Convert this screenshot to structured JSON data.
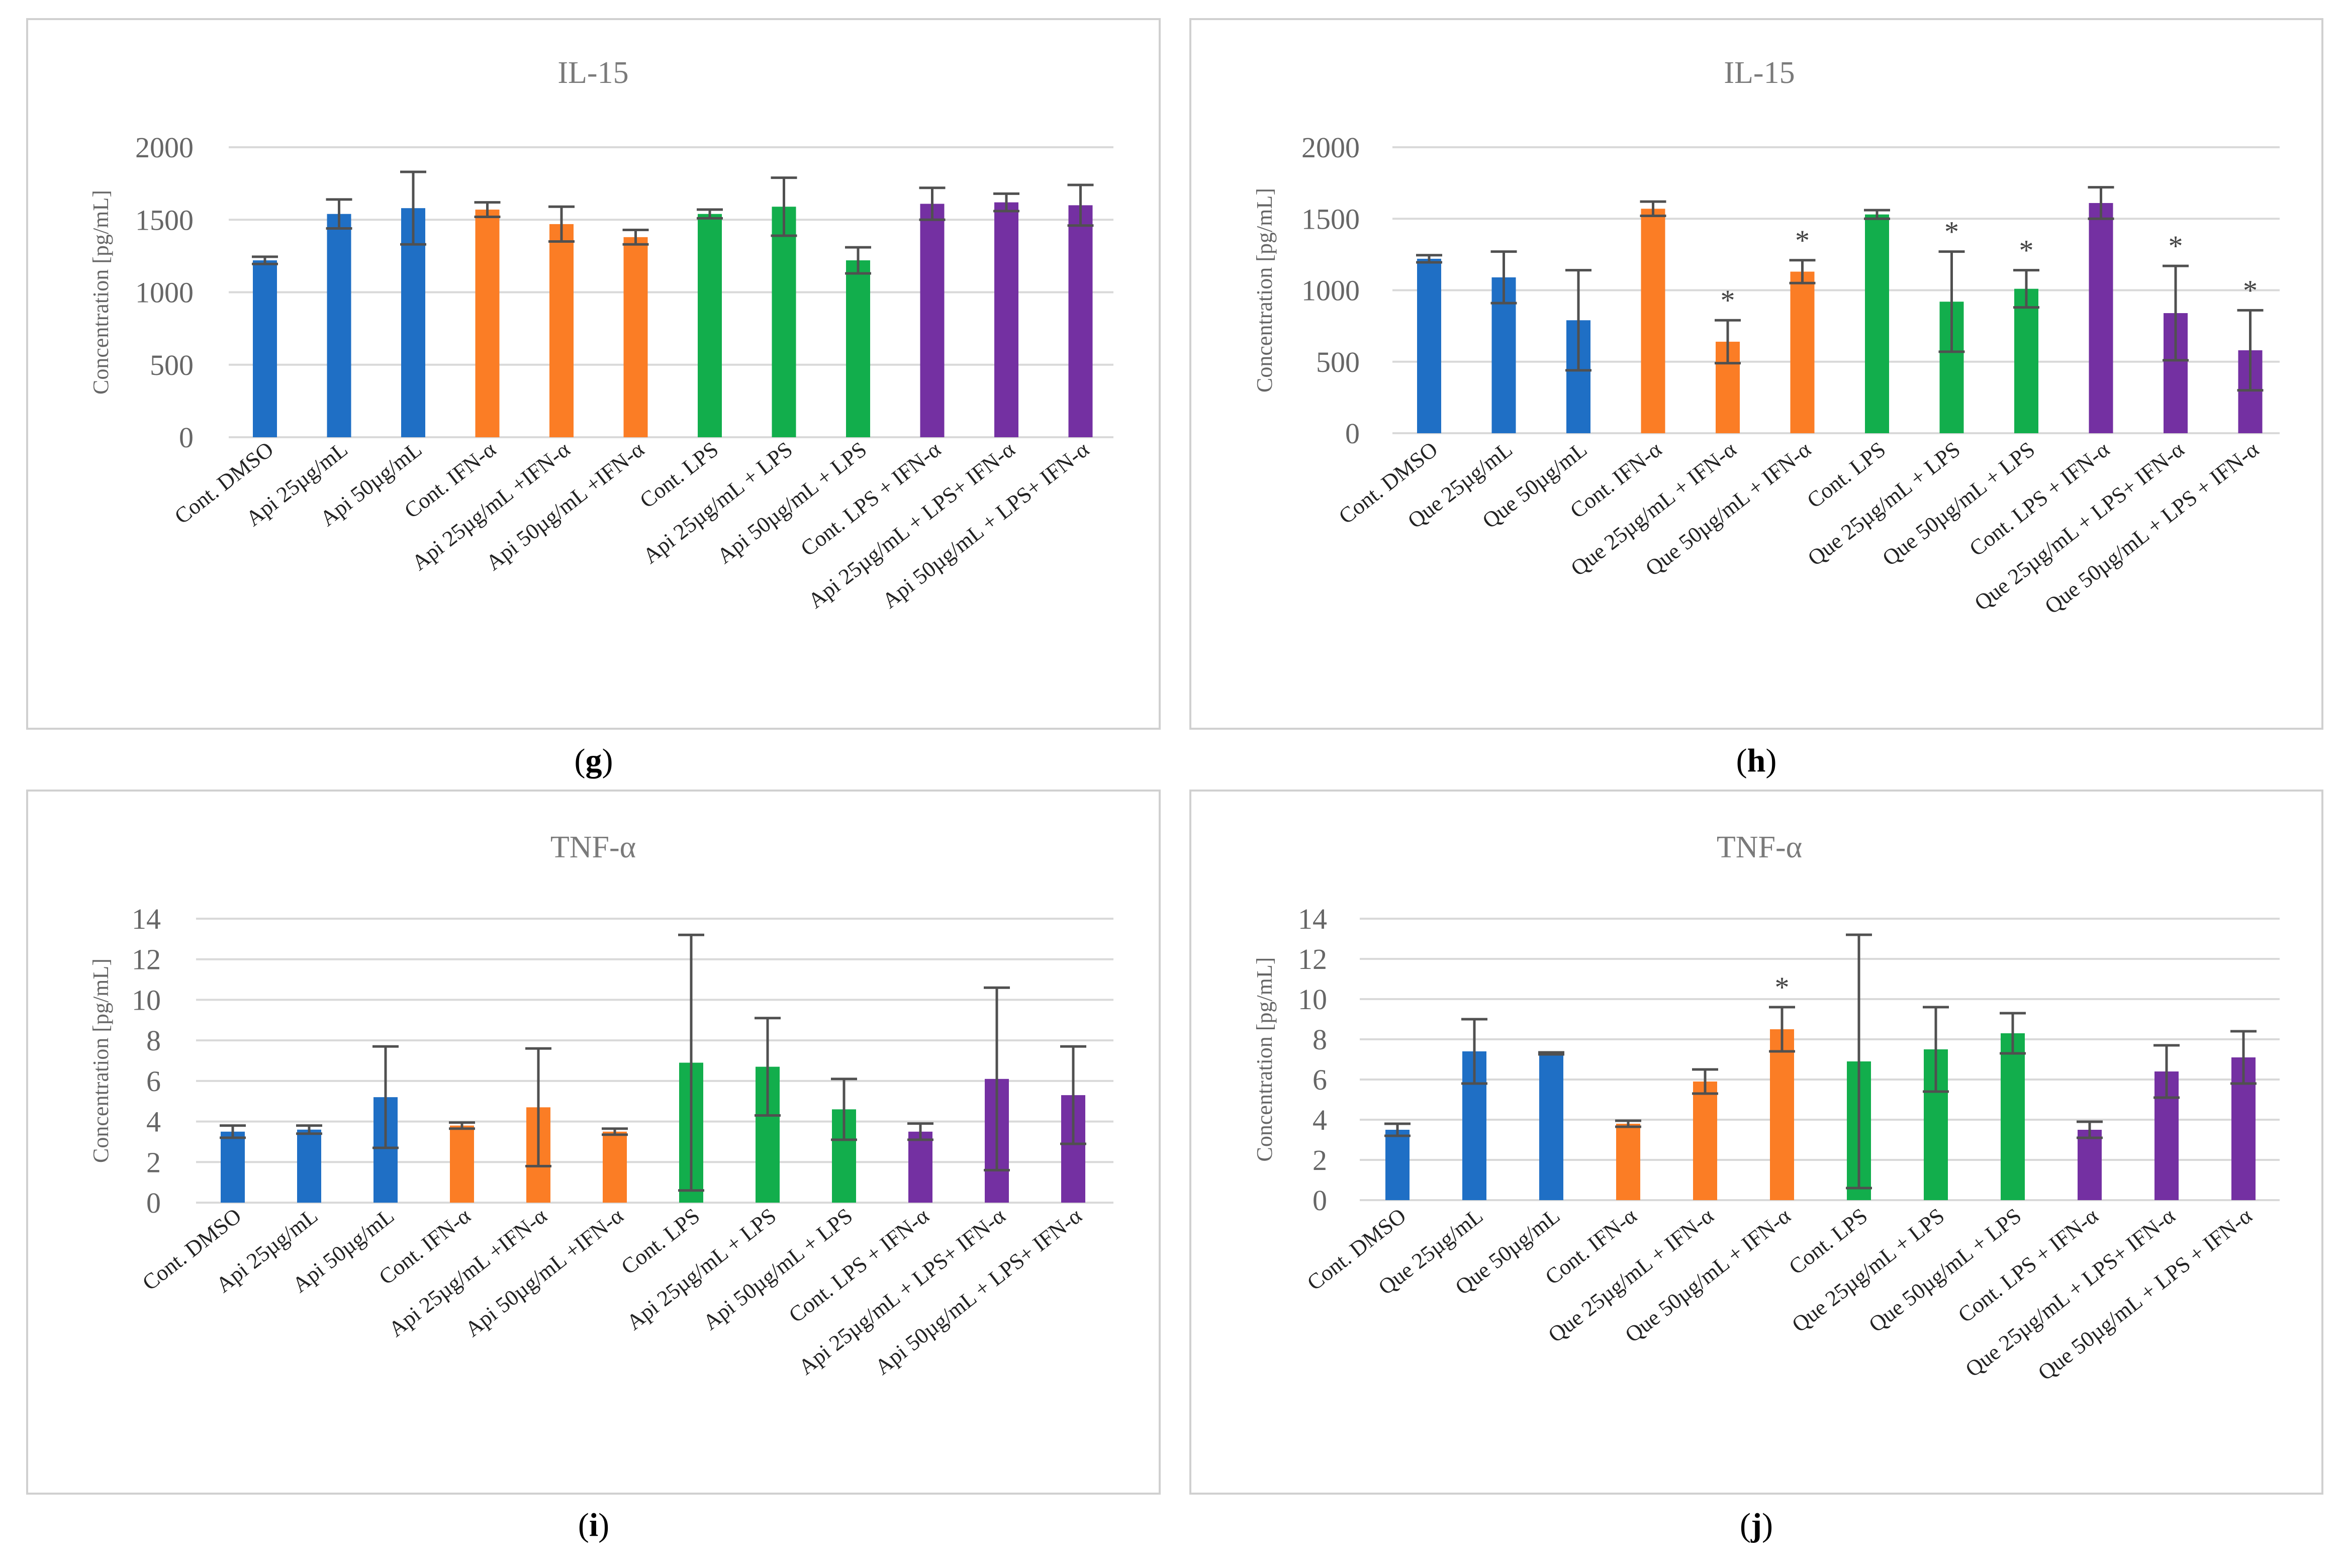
{
  "colors": {
    "blue": "#1f6fc5",
    "orange": "#fb7d25",
    "green": "#12ae4c",
    "purple": "#7430a2",
    "grid": "#d9d9d9",
    "error": "#505050"
  },
  "chart_data": [
    {
      "panel": "g",
      "type": "bar",
      "title": "IL-15",
      "ylabel": "Concentration [pg/mL]",
      "ylim": [
        0,
        2000
      ],
      "yticks": [
        0,
        500,
        1000,
        1500,
        2000
      ],
      "categories": [
        "Cont. DMSO",
        "Api  25µg/mL",
        "Api  50µg/mL",
        "Cont. IFN-α",
        "Api  25µg/mL +IFN-α",
        "Api  50µg/mL +IFN-α",
        "Cont. LPS",
        "Api  25µg/mL + LPS",
        "Api  50µg/mL + LPS",
        "Cont. LPS + IFN-α",
        "Api  25µg/mL + LPS+ IFN-α",
        "Api  50µg/mL + LPS+ IFN-α"
      ],
      "values": [
        1220,
        1540,
        1580,
        1570,
        1470,
        1380,
        1540,
        1590,
        1220,
        1610,
        1620,
        1600
      ],
      "errors": [
        25,
        100,
        250,
        50,
        120,
        50,
        30,
        200,
        90,
        110,
        60,
        140
      ],
      "colors": [
        "blue",
        "blue",
        "blue",
        "orange",
        "orange",
        "orange",
        "green",
        "green",
        "green",
        "purple",
        "purple",
        "purple"
      ],
      "significance": [
        "",
        "",
        "",
        "",
        "",
        "",
        "",
        "",
        "",
        "",
        "",
        ""
      ]
    },
    {
      "panel": "h",
      "type": "bar",
      "title": "IL-15",
      "ylabel": "Concentration [pg/mL]",
      "ylim": [
        0,
        2000
      ],
      "yticks": [
        0,
        500,
        1000,
        1500,
        2000
      ],
      "categories": [
        "Cont. DMSO",
        "Que 25µg/mL",
        "Que 50µg/mL",
        "Cont. IFN-α",
        "Que 25µg/mL + IFN-α",
        "Que 50µg/mL + IFN-α",
        "Cont. LPS",
        "Que 25µg/mL + LPS",
        "Que 50µg/mL + LPS",
        "Cont. LPS + IFN-α",
        "Que 25µg/mL + LPS+ IFN-α",
        "Que 50µg/mL + LPS + IFN-α"
      ],
      "values": [
        1220,
        1090,
        790,
        1570,
        640,
        1130,
        1530,
        920,
        1010,
        1610,
        840,
        580
      ],
      "errors": [
        25,
        180,
        350,
        50,
        150,
        80,
        30,
        350,
        130,
        110,
        330,
        280
      ],
      "colors": [
        "blue",
        "blue",
        "blue",
        "orange",
        "orange",
        "orange",
        "green",
        "green",
        "green",
        "purple",
        "purple",
        "purple"
      ],
      "significance": [
        "",
        "",
        "",
        "",
        "*",
        "*",
        "",
        "*",
        "*",
        "",
        "*",
        "*"
      ]
    },
    {
      "panel": "i",
      "type": "bar",
      "title": "TNF-α",
      "ylabel": "Concentration [pg/mL]",
      "ylim": [
        0,
        14
      ],
      "yticks": [
        0,
        2,
        4,
        6,
        8,
        10,
        12,
        14
      ],
      "categories": [
        "Cont. DMSO",
        "Api  25µg/mL",
        "Api  50µg/mL",
        "Cont. IFN-α",
        "Api  25µg/mL +IFN-α",
        "Api  50µg/mL +IFN-α",
        "Cont. LPS",
        "Api  25µg/mL + LPS",
        "Api  50µg/mL + LPS",
        "Cont. LPS + IFN-α",
        "Api  25µg/mL + LPS+ IFN-α",
        "Api  50µg/mL + LPS+ IFN-α"
      ],
      "values": [
        3.5,
        3.6,
        5.2,
        3.8,
        4.7,
        3.5,
        6.9,
        6.7,
        4.6,
        3.5,
        6.1,
        5.3
      ],
      "errors": [
        0.3,
        0.2,
        2.5,
        0.15,
        2.9,
        0.15,
        6.3,
        2.4,
        1.5,
        0.4,
        4.5,
        2.4
      ],
      "colors": [
        "blue",
        "blue",
        "blue",
        "orange",
        "orange",
        "orange",
        "green",
        "green",
        "green",
        "purple",
        "purple",
        "purple"
      ],
      "significance": [
        "",
        "",
        "",
        "",
        "",
        "",
        "",
        "",
        "",
        "",
        "",
        ""
      ]
    },
    {
      "panel": "j",
      "type": "bar",
      "title": "TNF-α",
      "ylabel": "Concentration [pg/mL]",
      "ylim": [
        0,
        14
      ],
      "yticks": [
        0,
        2,
        4,
        6,
        8,
        10,
        12,
        14
      ],
      "categories": [
        "Cont. DMSO",
        "Que 25µg/mL",
        "Que 50µg/mL",
        "Cont. IFN-α",
        "Que 25µg/mL + IFN-α",
        "Que 50µg/mL + IFN-α",
        "Cont. LPS",
        "Que 25µg/mL + LPS",
        "Que 50µg/mL + LPS",
        "Cont. LPS + IFN-α",
        "Que 25µg/mL + LPS+ IFN-α",
        "Que 50µg/mL + LPS + IFN-α"
      ],
      "values": [
        3.5,
        7.4,
        7.3,
        3.8,
        5.9,
        8.5,
        6.9,
        7.5,
        8.3,
        3.5,
        6.4,
        7.1
      ],
      "errors": [
        0.3,
        1.6,
        0.05,
        0.15,
        0.6,
        1.1,
        6.3,
        2.1,
        1.0,
        0.4,
        1.3,
        1.3
      ],
      "colors": [
        "blue",
        "blue",
        "blue",
        "orange",
        "orange",
        "orange",
        "green",
        "green",
        "green",
        "purple",
        "purple",
        "purple"
      ],
      "significance": [
        "",
        "",
        "",
        "",
        "",
        "*",
        "",
        "",
        "",
        "",
        "",
        ""
      ]
    }
  ]
}
